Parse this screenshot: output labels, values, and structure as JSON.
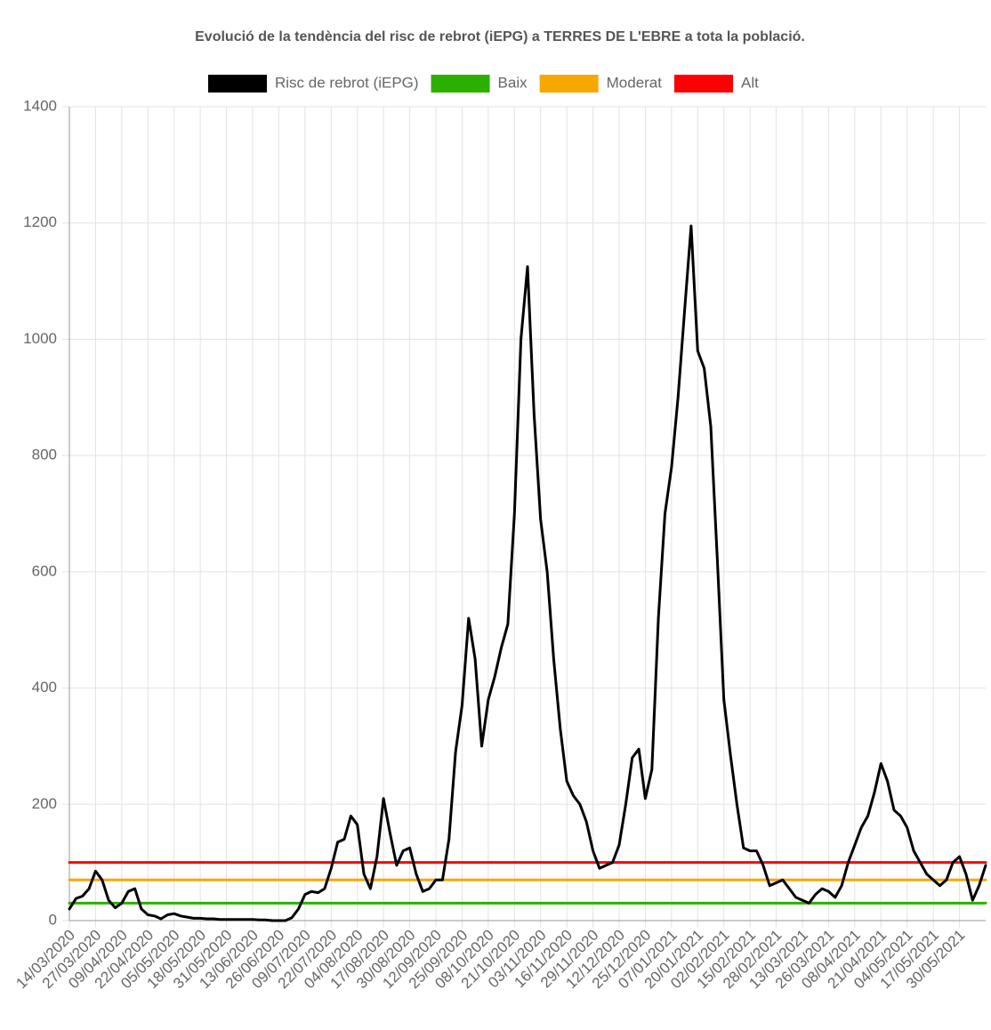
{
  "chart_data": {
    "type": "line",
    "title": "Evolució de la tendència del risc de rebrot (iEPG) a TERRES DE L'EBRE a tota la població.",
    "categories": [
      "14/03/2020",
      null,
      null,
      null,
      "27/03/2020",
      null,
      null,
      null,
      "09/04/2020",
      null,
      null,
      null,
      "22/04/2020",
      null,
      null,
      null,
      "05/05/2020",
      null,
      null,
      null,
      "18/05/2020",
      null,
      null,
      null,
      "31/05/2020",
      null,
      null,
      null,
      "13/06/2020",
      null,
      null,
      null,
      "26/06/2020",
      null,
      null,
      null,
      "09/07/2020",
      null,
      null,
      null,
      "22/07/2020",
      null,
      null,
      null,
      "04/08/2020",
      null,
      null,
      null,
      "17/08/2020",
      null,
      null,
      null,
      "30/08/2020",
      null,
      null,
      null,
      "12/09/2020",
      null,
      null,
      null,
      "25/09/2020",
      null,
      null,
      null,
      "08/10/2020",
      null,
      null,
      null,
      "21/10/2020",
      null,
      null,
      null,
      "03/11/2020",
      null,
      null,
      null,
      "16/11/2020",
      null,
      null,
      null,
      "29/11/2020",
      null,
      null,
      null,
      "12/12/2020",
      null,
      null,
      null,
      "25/12/2020",
      null,
      null,
      null,
      "07/01/2021",
      null,
      null,
      null,
      "20/01/2021",
      null,
      null,
      null,
      "02/02/2021",
      null,
      null,
      null,
      "15/02/2021",
      null,
      null,
      null,
      "28/02/2021",
      null,
      null,
      null,
      "13/03/2021",
      null,
      null,
      null,
      "26/03/2021",
      null,
      null,
      null,
      "08/04/2021",
      null,
      null,
      null,
      "21/04/2021",
      null,
      null,
      null,
      "04/05/2021",
      null,
      null,
      null,
      "17/05/2021",
      null,
      null,
      null,
      "30/05/2021",
      null,
      null,
      null,
      null
    ],
    "series": [
      {
        "name": "Risc de rebrot (iEPG)",
        "color": "#000000",
        "values": [
          20,
          38,
          42,
          55,
          85,
          70,
          35,
          22,
          30,
          50,
          55,
          20,
          10,
          8,
          3,
          10,
          12,
          8,
          6,
          4,
          4,
          3,
          3,
          2,
          2,
          2,
          2,
          2,
          2,
          1,
          1,
          0,
          0,
          0,
          5,
          20,
          45,
          50,
          48,
          55,
          90,
          135,
          140,
          180,
          165,
          80,
          55,
          110,
          210,
          150,
          95,
          120,
          125,
          80,
          50,
          55,
          70,
          70,
          140,
          290,
          370,
          520,
          450,
          300,
          380,
          420,
          470,
          510,
          700,
          1000,
          1125,
          870,
          690,
          600,
          450,
          330,
          240,
          215,
          200,
          170,
          120,
          90,
          95,
          100,
          130,
          200,
          280,
          295,
          210,
          260,
          520,
          700,
          780,
          900,
          1050,
          1195,
          980,
          950,
          850,
          620,
          380,
          285,
          200,
          125,
          120,
          120,
          95,
          60,
          65,
          70,
          55,
          40,
          35,
          30,
          45,
          55,
          50,
          40,
          60,
          100,
          130,
          160,
          180,
          220,
          270,
          240,
          190,
          180,
          160,
          120,
          100,
          80,
          70,
          60,
          70,
          100,
          110,
          80,
          35,
          60,
          95
        ]
      },
      {
        "name": "Baix",
        "color": "#2bb000",
        "values": [
          30,
          30,
          30,
          30,
          30,
          30,
          30,
          30,
          30,
          30,
          30,
          30,
          30,
          30,
          30,
          30,
          30,
          30,
          30,
          30,
          30,
          30,
          30,
          30,
          30,
          30,
          30,
          30,
          30,
          30,
          30,
          30,
          30,
          30,
          30,
          30,
          30,
          30,
          30,
          30,
          30,
          30,
          30,
          30,
          30,
          30,
          30,
          30,
          30,
          30,
          30,
          30,
          30,
          30,
          30,
          30,
          30,
          30,
          30,
          30,
          30,
          30,
          30,
          30,
          30,
          30,
          30,
          30,
          30,
          30,
          30,
          30,
          30,
          30,
          30,
          30,
          30,
          30,
          30,
          30,
          30,
          30,
          30,
          30,
          30,
          30,
          30,
          30,
          30,
          30,
          30,
          30,
          30,
          30,
          30,
          30,
          30,
          30,
          30,
          30,
          30,
          30,
          30,
          30,
          30,
          30,
          30,
          30,
          30,
          30,
          30,
          30,
          30,
          30,
          30,
          30,
          30,
          30,
          30,
          30,
          30,
          30,
          30,
          30,
          30,
          30,
          30,
          30,
          30,
          30,
          30,
          30,
          30,
          30,
          30,
          30,
          30,
          30,
          30,
          30,
          30
        ]
      },
      {
        "name": "Moderat",
        "color": "#f7a800",
        "values": [
          70,
          70,
          70,
          70,
          70,
          70,
          70,
          70,
          70,
          70,
          70,
          70,
          70,
          70,
          70,
          70,
          70,
          70,
          70,
          70,
          70,
          70,
          70,
          70,
          70,
          70,
          70,
          70,
          70,
          70,
          70,
          70,
          70,
          70,
          70,
          70,
          70,
          70,
          70,
          70,
          70,
          70,
          70,
          70,
          70,
          70,
          70,
          70,
          70,
          70,
          70,
          70,
          70,
          70,
          70,
          70,
          70,
          70,
          70,
          70,
          70,
          70,
          70,
          70,
          70,
          70,
          70,
          70,
          70,
          70,
          70,
          70,
          70,
          70,
          70,
          70,
          70,
          70,
          70,
          70,
          70,
          70,
          70,
          70,
          70,
          70,
          70,
          70,
          70,
          70,
          70,
          70,
          70,
          70,
          70,
          70,
          70,
          70,
          70,
          70,
          70,
          70,
          70,
          70,
          70,
          70,
          70,
          70,
          70,
          70,
          70,
          70,
          70,
          70,
          70,
          70,
          70,
          70,
          70,
          70,
          70,
          70,
          70,
          70,
          70,
          70,
          70,
          70,
          70,
          70,
          70,
          70,
          70,
          70,
          70,
          70,
          70,
          70,
          70,
          70,
          70
        ]
      },
      {
        "name": "Alt",
        "color": "#ff0000",
        "values": [
          100,
          100,
          100,
          100,
          100,
          100,
          100,
          100,
          100,
          100,
          100,
          100,
          100,
          100,
          100,
          100,
          100,
          100,
          100,
          100,
          100,
          100,
          100,
          100,
          100,
          100,
          100,
          100,
          100,
          100,
          100,
          100,
          100,
          100,
          100,
          100,
          100,
          100,
          100,
          100,
          100,
          100,
          100,
          100,
          100,
          100,
          100,
          100,
          100,
          100,
          100,
          100,
          100,
          100,
          100,
          100,
          100,
          100,
          100,
          100,
          100,
          100,
          100,
          100,
          100,
          100,
          100,
          100,
          100,
          100,
          100,
          100,
          100,
          100,
          100,
          100,
          100,
          100,
          100,
          100,
          100,
          100,
          100,
          100,
          100,
          100,
          100,
          100,
          100,
          100,
          100,
          100,
          100,
          100,
          100,
          100,
          100,
          100,
          100,
          100,
          100,
          100,
          100,
          100,
          100,
          100,
          100,
          100,
          100,
          100,
          100,
          100,
          100,
          100,
          100,
          100,
          100,
          100,
          100,
          100,
          100,
          100,
          100,
          100,
          100,
          100,
          100,
          100,
          100,
          100,
          100,
          100,
          100,
          100,
          100,
          100,
          100,
          100,
          100,
          100,
          100
        ]
      }
    ],
    "ylim": [
      0,
      1400
    ],
    "yticks": [
      0,
      200,
      400,
      600,
      800,
      1000,
      1200,
      1400
    ],
    "grid": true,
    "legend": "top"
  }
}
